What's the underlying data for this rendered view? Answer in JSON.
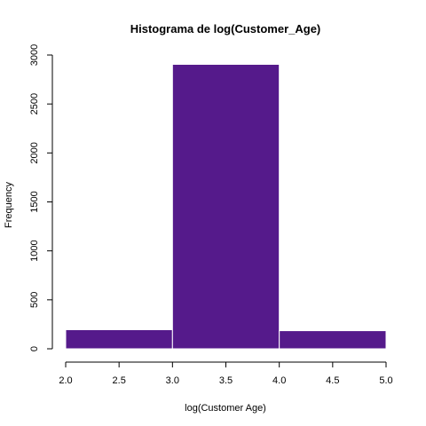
{
  "chart_data": {
    "type": "bar",
    "title": "Histograma de log(Customer_Age)",
    "xlabel": "log(Customer Age)",
    "ylabel": "Frequency",
    "bins": [
      {
        "from": 2.0,
        "to": 3.0,
        "count": 195
      },
      {
        "from": 3.0,
        "to": 4.0,
        "count": 2905
      },
      {
        "from": 4.0,
        "to": 5.0,
        "count": 185
      }
    ],
    "xlim": [
      2.0,
      5.0
    ],
    "ylim": [
      0,
      3000
    ],
    "x_ticks": [
      "2.0",
      "2.5",
      "3.0",
      "3.5",
      "4.0",
      "4.5",
      "5.0"
    ],
    "y_ticks": [
      "0",
      "500",
      "1000",
      "1500",
      "2000",
      "2500",
      "3000"
    ],
    "bar_color": "#551a8b",
    "bar_border_color": "#ffffff",
    "grid": false,
    "legend": "none"
  }
}
